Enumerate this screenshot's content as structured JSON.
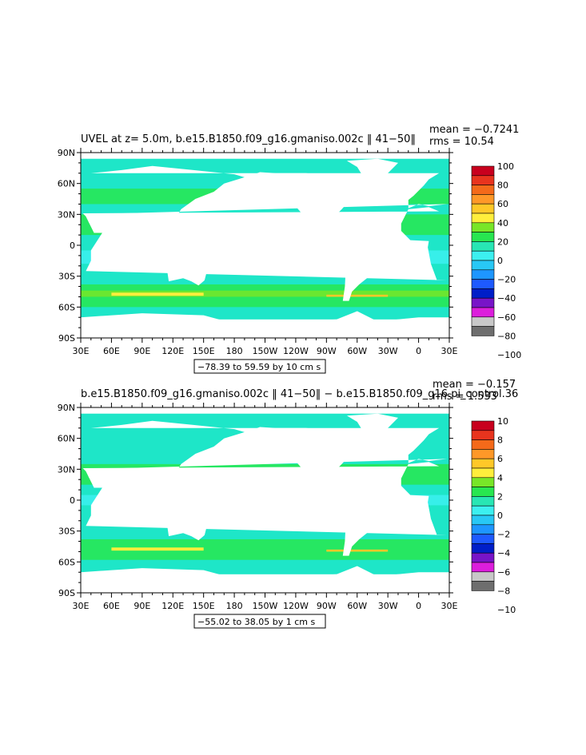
{
  "chart_data": [
    {
      "type": "heatmap",
      "title": "UVEL at z=    5.0m, b.e15.B1850.f09_g16.gmaniso.002c ‖ 41−50‖",
      "stats": {
        "mean": "mean = −0.7241",
        "rms": "rms = 10.54"
      },
      "range_label": "−78.39 to 59.59 by 10 cm s",
      "range_units_exp": "−1",
      "y_ticks": [
        "90N",
        "60N",
        "30N",
        "0",
        "30S",
        "60S",
        "90S"
      ],
      "x_ticks": [
        "30E",
        "60E",
        "90E",
        "120E",
        "150E",
        "180",
        "150W",
        "120W",
        "90W",
        "60W",
        "30W",
        "0",
        "30E"
      ],
      "colorbar": {
        "labels": [
          "100",
          "80",
          "60",
          "40",
          "20",
          "0",
          "−20",
          "−40",
          "−60",
          "−80",
          "−100"
        ],
        "colors": [
          "#c8001e",
          "#e8341e",
          "#f46a1a",
          "#ff9828",
          "#ffc828",
          "#ffee3c",
          "#78e628",
          "#28e650",
          "#28e6b4",
          "#3cf0f0",
          "#28c8f5",
          "#1e96ff",
          "#1e5aff",
          "#001ec8",
          "#7814c8",
          "#dc1edc",
          "#c8c8c8",
          "#6e6e6e"
        ]
      },
      "ylim": [
        -90,
        90
      ],
      "xlim": [
        "30E",
        "30E"
      ]
    },
    {
      "type": "heatmap",
      "title": "b.e15.B1850.f09_g16.gmaniso.002c ‖ 41−50‖  −  b.e15.B1850.f09_g16.pi_control.36",
      "stats": {
        "mean": "mean = −0.157",
        "rms": "rms = 1.533"
      },
      "range_label": "−55.02 to 38.05 by 1 cm s",
      "range_units_exp": "−1",
      "y_ticks": [
        "90N",
        "60N",
        "30N",
        "0",
        "30S",
        "60S",
        "90S"
      ],
      "x_ticks": [
        "30E",
        "60E",
        "90E",
        "120E",
        "150E",
        "180",
        "150W",
        "120W",
        "90W",
        "60W",
        "30W",
        "0",
        "30E"
      ],
      "colorbar": {
        "labels": [
          "10",
          "8",
          "6",
          "4",
          "2",
          "0",
          "−2",
          "−4",
          "−6",
          "−8",
          "−10"
        ],
        "colors": [
          "#c8001e",
          "#e8341e",
          "#f46a1a",
          "#ff9828",
          "#ffc828",
          "#ffee3c",
          "#78e628",
          "#28e650",
          "#28e6b4",
          "#3cf0f0",
          "#28c8f5",
          "#1e96ff",
          "#1e5aff",
          "#001ec8",
          "#7814c8",
          "#dc1edc",
          "#c8c8c8",
          "#6e6e6e"
        ]
      },
      "ylim": [
        -90,
        90
      ],
      "xlim": [
        "30E",
        "30E"
      ]
    }
  ],
  "map_colors": {
    "ocean": "#1ee6c8",
    "ocean_light": "#3cf0f0",
    "band_green": "#28e650",
    "land": "#ffffff"
  }
}
